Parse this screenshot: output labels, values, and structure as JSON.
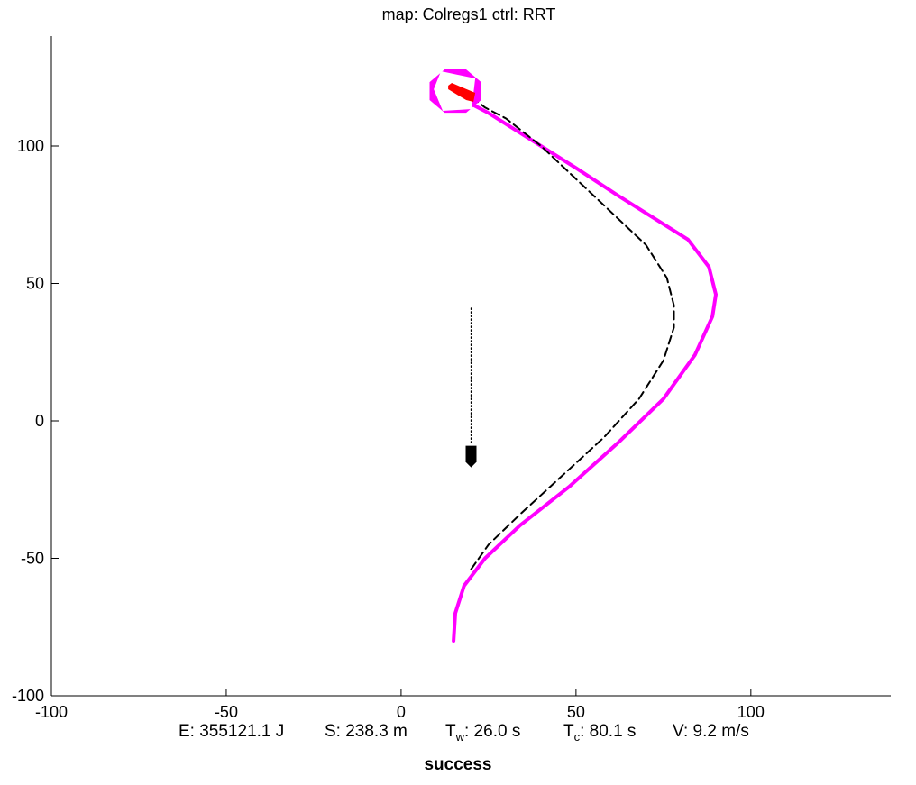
{
  "title": "map: Colregs1 ctrl: RRT",
  "chart_data": {
    "type": "line",
    "xlim": [
      -100,
      140
    ],
    "ylim": [
      -100,
      140
    ],
    "xticks": [
      -100,
      -50,
      0,
      50,
      100
    ],
    "yticks": [
      -100,
      -50,
      0,
      50,
      100
    ],
    "xtick_labels": [
      "-100",
      "-50",
      "0",
      "50",
      "100"
    ],
    "ytick_labels": [
      "-100",
      "-50",
      "0",
      "50",
      "100"
    ],
    "grid": false,
    "series": [
      {
        "style": "solid-thick",
        "color": "#ff00ff",
        "points": [
          [
            15,
            -80
          ],
          [
            15.5,
            -70
          ],
          [
            18,
            -60
          ],
          [
            24,
            -50
          ],
          [
            34,
            -38
          ],
          [
            48,
            -24
          ],
          [
            62,
            -8
          ],
          [
            75,
            8
          ],
          [
            84,
            24
          ],
          [
            89,
            38
          ],
          [
            90,
            46
          ],
          [
            88,
            56
          ],
          [
            82,
            66
          ],
          [
            72,
            74
          ],
          [
            62,
            82
          ],
          [
            50,
            92
          ],
          [
            35,
            104
          ],
          [
            25,
            112
          ],
          [
            19,
            116
          ]
        ]
      },
      {
        "style": "dashed",
        "color": "#000000",
        "points": [
          [
            20,
            -54
          ],
          [
            25,
            -45
          ],
          [
            34,
            -34
          ],
          [
            46,
            -20
          ],
          [
            58,
            -6
          ],
          [
            68,
            8
          ],
          [
            75,
            22
          ],
          [
            78,
            34
          ],
          [
            78,
            42
          ],
          [
            76,
            52
          ],
          [
            70,
            64
          ],
          [
            60,
            76
          ],
          [
            50,
            88
          ],
          [
            40,
            100
          ],
          [
            30,
            110
          ],
          [
            24,
            114
          ],
          [
            20,
            118
          ]
        ]
      },
      {
        "style": "dotted",
        "color": "#000000",
        "points": [
          [
            20,
            -8
          ],
          [
            20,
            41
          ]
        ]
      }
    ],
    "own_vessel": {
      "x": 20,
      "y": -13,
      "color": "#000000"
    },
    "goal_marker": {
      "x": 15,
      "y": 119,
      "region_color": "#ff00ff",
      "vessel_color": "#ff0000"
    }
  },
  "stats": {
    "energy": "E: 355121.1 J",
    "distance": "S: 238.3 m",
    "tw_letter": "T",
    "tw_sub": "w",
    "tw_value": ": 26.0 s",
    "tc_letter": "T",
    "tc_sub": "c",
    "tc_value": ": 80.1 s",
    "speed": "V: 9.2 m/s"
  },
  "status": "success"
}
